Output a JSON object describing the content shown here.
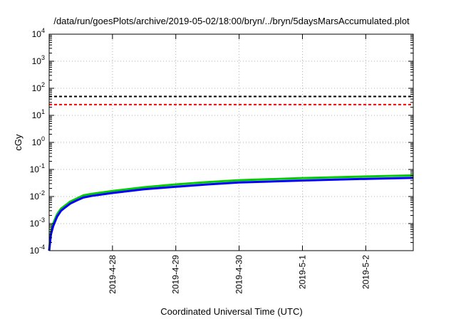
{
  "chart_data": {
    "type": "line",
    "title": "/data/run/goesPlots/archive/2019-05-02/18:00/bryn/../bryn/5daysMarsAccumulated.plot",
    "xlabel": "Coordinated Universal Time (UTC)",
    "ylabel": "cGy",
    "y_scale": "log",
    "ylim": [
      0.0001,
      10000
    ],
    "y_ticks": [
      {
        "value": 0.0001,
        "base": "10",
        "exp": "-4"
      },
      {
        "value": 0.001,
        "base": "10",
        "exp": "-3"
      },
      {
        "value": 0.01,
        "base": "10",
        "exp": "-2"
      },
      {
        "value": 0.1,
        "base": "10",
        "exp": "-1"
      },
      {
        "value": 1,
        "base": "10",
        "exp": "0"
      },
      {
        "value": 10,
        "base": "10",
        "exp": "1"
      },
      {
        "value": 100,
        "base": "10",
        "exp": "2"
      },
      {
        "value": 1000,
        "base": "10",
        "exp": "3"
      },
      {
        "value": 10000,
        "base": "10",
        "exp": "4"
      }
    ],
    "xlim": [
      "2019-04-27T00:00",
      "2019-05-02T18:00"
    ],
    "x_ticks": [
      "2019-4-28",
      "2019-4-29",
      "2019-4-30",
      "2019-5-1",
      "2019-5-2"
    ],
    "grid": true,
    "reference_lines": [
      {
        "value": 50,
        "color": "#000000",
        "style": "dashed"
      },
      {
        "value": 25,
        "color": "#ff0000",
        "style": "dashed"
      }
    ],
    "series": [
      {
        "color": "#00cc00",
        "x": [
          "2019-04-27T00:00",
          "2019-04-27T00:40",
          "2019-04-27T01:30",
          "2019-04-27T03:00",
          "2019-04-27T04:30",
          "2019-04-27T06:00",
          "2019-04-27T08:00",
          "2019-04-27T10:30",
          "2019-04-27T13:00",
          "2019-04-27T16:00",
          "2019-04-28T00:00",
          "2019-04-28T12:00",
          "2019-04-29T00:00",
          "2019-04-29T12:00",
          "2019-04-30T00:00",
          "2019-05-01T00:00",
          "2019-05-02T00:00",
          "2019-05-02T18:00"
        ],
        "y": [
          0.0001,
          0.0005,
          0.001,
          0.0022,
          0.0036,
          0.0046,
          0.0065,
          0.0085,
          0.011,
          0.0125,
          0.016,
          0.022,
          0.028,
          0.034,
          0.04,
          0.048,
          0.055,
          0.06
        ]
      },
      {
        "color": "#0000ff",
        "x": [
          "2019-04-27T00:00",
          "2019-04-27T00:40",
          "2019-04-27T01:30",
          "2019-04-27T03:00",
          "2019-04-27T04:30",
          "2019-04-27T06:00",
          "2019-04-27T08:00",
          "2019-04-27T10:30",
          "2019-04-27T13:00",
          "2019-04-27T16:00",
          "2019-04-28T00:00",
          "2019-04-28T12:00",
          "2019-04-29T00:00",
          "2019-04-29T12:00",
          "2019-04-30T00:00",
          "2019-05-01T00:00",
          "2019-05-02T00:00",
          "2019-05-02T18:00"
        ],
        "y": [
          0.0001,
          0.0004,
          0.0008,
          0.0018,
          0.003,
          0.0039,
          0.0055,
          0.0072,
          0.0092,
          0.0105,
          0.0135,
          0.0185,
          0.023,
          0.028,
          0.033,
          0.039,
          0.045,
          0.049
        ]
      }
    ]
  }
}
